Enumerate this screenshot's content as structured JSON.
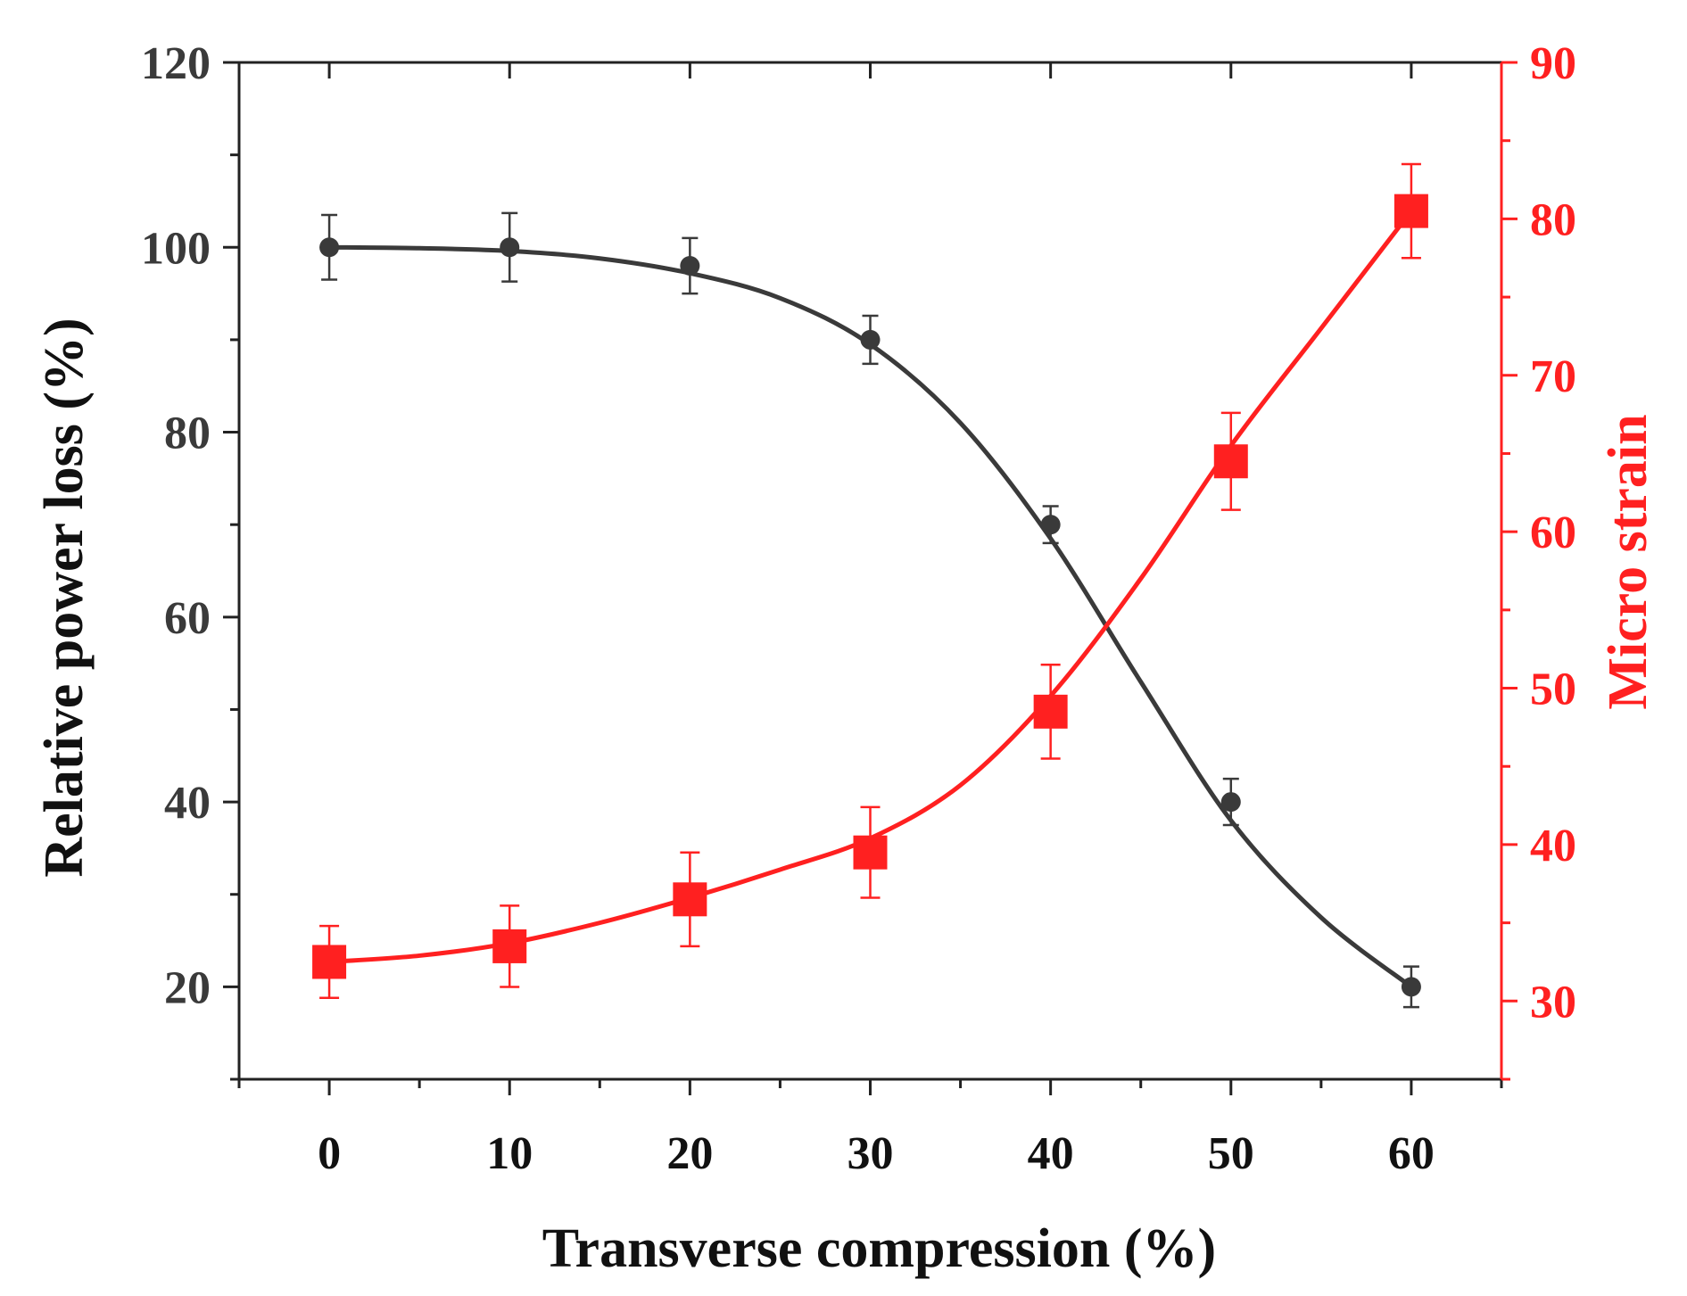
{
  "chart_data": {
    "type": "line",
    "title": "",
    "xlabel": "Transverse compression (%)",
    "ylabel_left": "Relative power loss (%)",
    "ylabel_right": "Micro strain",
    "x": [
      0,
      10,
      20,
      30,
      40,
      50,
      60
    ],
    "xlim": [
      -5,
      65
    ],
    "xticks": [
      0,
      10,
      20,
      30,
      40,
      50,
      60
    ],
    "ylim_left": [
      10,
      120
    ],
    "yticks_left": [
      20,
      40,
      60,
      80,
      100,
      120
    ],
    "ylim_right": [
      25,
      90
    ],
    "yticks_right": [
      30,
      40,
      50,
      60,
      70,
      80,
      90
    ],
    "grid": false,
    "legend": "none",
    "colors": {
      "left": "#3a3a3a",
      "right": "#ff2020"
    },
    "series": [
      {
        "name": "Relative power loss",
        "axis": "left",
        "marker": "circle",
        "values": [
          100,
          100,
          98,
          90,
          70,
          40,
          20
        ],
        "errors": [
          3.5,
          3.7,
          3.0,
          2.6,
          2.0,
          2.5,
          2.2
        ],
        "fit": [
          [
            0,
            100
          ],
          [
            5,
            99.9
          ],
          [
            10,
            99.6
          ],
          [
            15,
            98.8
          ],
          [
            20,
            97.2
          ],
          [
            25,
            94.5
          ],
          [
            30,
            89.5
          ],
          [
            35,
            81
          ],
          [
            40,
            68.5
          ],
          [
            45,
            53
          ],
          [
            50,
            38
          ],
          [
            55,
            27.5
          ],
          [
            60,
            20
          ]
        ]
      },
      {
        "name": "Micro strain",
        "axis": "right",
        "marker": "square",
        "values": [
          32.5,
          33.5,
          36.5,
          39.5,
          48.5,
          64.5,
          80.5
        ],
        "errors": [
          2.3,
          2.6,
          3.0,
          2.9,
          3.0,
          3.1,
          3.0
        ],
        "fit": [
          [
            0,
            32.5
          ],
          [
            5,
            32.9
          ],
          [
            10,
            33.7
          ],
          [
            15,
            35
          ],
          [
            20,
            36.6
          ],
          [
            25,
            38.4
          ],
          [
            30,
            40.4
          ],
          [
            35,
            43.8
          ],
          [
            40,
            49.5
          ],
          [
            45,
            57
          ],
          [
            50,
            65.5
          ],
          [
            55,
            73
          ],
          [
            60,
            80.5
          ]
        ]
      }
    ]
  }
}
